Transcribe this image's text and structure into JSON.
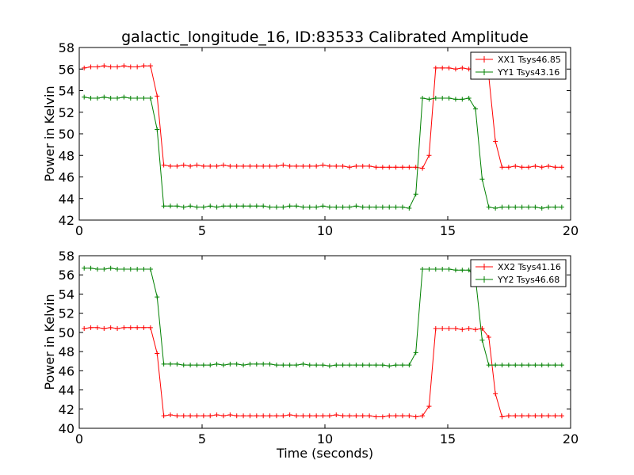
{
  "chart_data": {
    "title": "galactic_longitude_16, ID:83533 Calibrated Amplitude",
    "xlabel": "Time (seconds)",
    "type": "line",
    "panels": [
      {
        "ylabel": "Power in Kelvin",
        "xlim": [
          0,
          20
        ],
        "ylim": [
          42,
          58
        ],
        "xticks": [
          "0",
          "5",
          "10",
          "15",
          "20"
        ],
        "yticks": [
          "42",
          "44",
          "46",
          "48",
          "50",
          "52",
          "54",
          "56",
          "58"
        ],
        "legend": "top-right",
        "grid": false,
        "series": [
          {
            "name": "XX1 Tsys46.85",
            "color": "#ff0000",
            "x": [
              0.2,
              0.47,
              0.74,
              1.01,
              1.28,
              1.55,
              1.82,
              2.09,
              2.36,
              2.63,
              2.9,
              3.17,
              3.44,
              3.71,
              3.98,
              4.25,
              4.52,
              4.79,
              5.06,
              5.33,
              5.6,
              5.87,
              6.14,
              6.41,
              6.68,
              6.95,
              7.22,
              7.49,
              7.76,
              8.03,
              8.3,
              8.57,
              8.84,
              9.11,
              9.38,
              9.65,
              9.92,
              10.19,
              10.46,
              10.73,
              11.0,
              11.27,
              11.54,
              11.81,
              12.08,
              12.35,
              12.62,
              12.89,
              13.16,
              13.43,
              13.7,
              13.97,
              14.24,
              14.51,
              14.78,
              15.05,
              15.32,
              15.59,
              15.86,
              16.13,
              16.4,
              16.67,
              16.94,
              17.21,
              17.48,
              17.75,
              18.02,
              18.29,
              18.56,
              18.83,
              19.1,
              19.37,
              19.64
            ],
            "y": [
              56.1,
              56.2,
              56.2,
              56.3,
              56.2,
              56.2,
              56.3,
              56.2,
              56.2,
              56.3,
              56.3,
              53.5,
              47.1,
              47.0,
              47.0,
              47.1,
              47.0,
              47.1,
              47.0,
              47.0,
              47.0,
              47.1,
              47.0,
              47.0,
              47.0,
              47.0,
              47.0,
              47.0,
              47.0,
              47.0,
              47.1,
              47.0,
              47.0,
              47.0,
              47.0,
              47.0,
              47.1,
              47.0,
              47.0,
              47.0,
              46.9,
              47.0,
              47.0,
              47.0,
              46.9,
              46.9,
              46.9,
              46.9,
              46.9,
              46.9,
              46.9,
              46.8,
              48.0,
              56.1,
              56.1,
              56.1,
              56.0,
              56.1,
              56.0,
              56.1,
              56.0,
              55.3,
              49.3,
              46.9,
              46.9,
              47.0,
              46.9,
              46.9,
              47.0,
              46.9,
              47.0,
              46.9,
              46.9
            ]
          },
          {
            "name": "YY1 Tsys43.16",
            "color": "#008000",
            "x": [
              0.2,
              0.47,
              0.74,
              1.01,
              1.28,
              1.55,
              1.82,
              2.09,
              2.36,
              2.63,
              2.9,
              3.17,
              3.44,
              3.71,
              3.98,
              4.25,
              4.52,
              4.79,
              5.06,
              5.33,
              5.6,
              5.87,
              6.14,
              6.41,
              6.68,
              6.95,
              7.22,
              7.49,
              7.76,
              8.03,
              8.3,
              8.57,
              8.84,
              9.11,
              9.38,
              9.65,
              9.92,
              10.19,
              10.46,
              10.73,
              11.0,
              11.27,
              11.54,
              11.81,
              12.08,
              12.35,
              12.62,
              12.89,
              13.16,
              13.43,
              13.7,
              13.97,
              14.24,
              14.51,
              14.78,
              15.05,
              15.32,
              15.59,
              15.86,
              16.13,
              16.4,
              16.67,
              16.94,
              17.21,
              17.48,
              17.75,
              18.02,
              18.29,
              18.56,
              18.83,
              19.1,
              19.37,
              19.64
            ],
            "y": [
              53.4,
              53.3,
              53.3,
              53.4,
              53.3,
              53.3,
              53.4,
              53.3,
              53.3,
              53.3,
              53.3,
              50.4,
              43.3,
              43.3,
              43.3,
              43.2,
              43.3,
              43.2,
              43.2,
              43.3,
              43.2,
              43.3,
              43.3,
              43.3,
              43.3,
              43.3,
              43.3,
              43.3,
              43.2,
              43.2,
              43.2,
              43.3,
              43.3,
              43.2,
              43.2,
              43.2,
              43.3,
              43.2,
              43.2,
              43.2,
              43.2,
              43.3,
              43.2,
              43.2,
              43.2,
              43.2,
              43.2,
              43.2,
              43.2,
              43.1,
              44.4,
              53.3,
              53.2,
              53.3,
              53.3,
              53.3,
              53.2,
              53.2,
              53.3,
              52.3,
              45.8,
              43.2,
              43.1,
              43.2,
              43.2,
              43.2,
              43.2,
              43.2,
              43.2,
              43.1,
              43.2,
              43.2,
              43.2
            ]
          }
        ]
      },
      {
        "ylabel": "Power in Kelvin",
        "xlim": [
          0,
          20
        ],
        "ylim": [
          40,
          58
        ],
        "xticks": [
          "0",
          "5",
          "10",
          "15",
          "20"
        ],
        "yticks": [
          "40",
          "42",
          "44",
          "46",
          "48",
          "50",
          "52",
          "54",
          "56",
          "58"
        ],
        "legend": "top-right",
        "grid": false,
        "series": [
          {
            "name": "XX2 Tsys41.16",
            "color": "#ff0000",
            "x": [
              0.2,
              0.47,
              0.74,
              1.01,
              1.28,
              1.55,
              1.82,
              2.09,
              2.36,
              2.63,
              2.9,
              3.17,
              3.44,
              3.71,
              3.98,
              4.25,
              4.52,
              4.79,
              5.06,
              5.33,
              5.6,
              5.87,
              6.14,
              6.41,
              6.68,
              6.95,
              7.22,
              7.49,
              7.76,
              8.03,
              8.3,
              8.57,
              8.84,
              9.11,
              9.38,
              9.65,
              9.92,
              10.19,
              10.46,
              10.73,
              11.0,
              11.27,
              11.54,
              11.81,
              12.08,
              12.35,
              12.62,
              12.89,
              13.16,
              13.43,
              13.7,
              13.97,
              14.24,
              14.51,
              14.78,
              15.05,
              15.32,
              15.59,
              15.86,
              16.13,
              16.4,
              16.67,
              16.94,
              17.21,
              17.48,
              17.75,
              18.02,
              18.29,
              18.56,
              18.83,
              19.1,
              19.37,
              19.64
            ],
            "y": [
              50.4,
              50.5,
              50.5,
              50.4,
              50.5,
              50.4,
              50.5,
              50.5,
              50.5,
              50.5,
              50.5,
              47.8,
              41.3,
              41.4,
              41.3,
              41.3,
              41.3,
              41.3,
              41.3,
              41.3,
              41.4,
              41.3,
              41.4,
              41.3,
              41.3,
              41.3,
              41.3,
              41.3,
              41.3,
              41.3,
              41.3,
              41.4,
              41.3,
              41.3,
              41.3,
              41.3,
              41.3,
              41.3,
              41.4,
              41.3,
              41.3,
              41.3,
              41.3,
              41.3,
              41.2,
              41.2,
              41.3,
              41.3,
              41.3,
              41.3,
              41.2,
              41.3,
              42.3,
              50.4,
              50.4,
              50.4,
              50.4,
              50.3,
              50.4,
              50.3,
              50.4,
              49.5,
              43.6,
              41.2,
              41.3,
              41.3,
              41.3,
              41.3,
              41.3,
              41.3,
              41.3,
              41.3,
              41.3
            ]
          },
          {
            "name": "YY2 Tsys46.68",
            "color": "#008000",
            "x": [
              0.2,
              0.47,
              0.74,
              1.01,
              1.28,
              1.55,
              1.82,
              2.09,
              2.36,
              2.63,
              2.9,
              3.17,
              3.44,
              3.71,
              3.98,
              4.25,
              4.52,
              4.79,
              5.06,
              5.33,
              5.6,
              5.87,
              6.14,
              6.41,
              6.68,
              6.95,
              7.22,
              7.49,
              7.76,
              8.03,
              8.3,
              8.57,
              8.84,
              9.11,
              9.38,
              9.65,
              9.92,
              10.19,
              10.46,
              10.73,
              11.0,
              11.27,
              11.54,
              11.81,
              12.08,
              12.35,
              12.62,
              12.89,
              13.16,
              13.43,
              13.7,
              13.97,
              14.24,
              14.51,
              14.78,
              15.05,
              15.32,
              15.59,
              15.86,
              16.13,
              16.4,
              16.67,
              16.94,
              17.21,
              17.48,
              17.75,
              18.02,
              18.29,
              18.56,
              18.83,
              19.1,
              19.37,
              19.64
            ],
            "y": [
              56.7,
              56.7,
              56.6,
              56.6,
              56.7,
              56.6,
              56.6,
              56.6,
              56.6,
              56.6,
              56.6,
              53.7,
              46.7,
              46.7,
              46.7,
              46.6,
              46.6,
              46.6,
              46.6,
              46.6,
              46.7,
              46.6,
              46.7,
              46.7,
              46.6,
              46.7,
              46.7,
              46.7,
              46.7,
              46.6,
              46.6,
              46.6,
              46.6,
              46.7,
              46.6,
              46.6,
              46.6,
              46.5,
              46.6,
              46.6,
              46.6,
              46.6,
              46.6,
              46.6,
              46.6,
              46.6,
              46.5,
              46.6,
              46.6,
              46.6,
              47.9,
              56.6,
              56.6,
              56.6,
              56.6,
              56.6,
              56.5,
              56.5,
              56.5,
              55.7,
              49.2,
              46.6,
              46.6,
              46.6,
              46.6,
              46.6,
              46.6,
              46.6,
              46.6,
              46.6,
              46.6,
              46.6,
              46.6
            ]
          }
        ]
      }
    ]
  }
}
